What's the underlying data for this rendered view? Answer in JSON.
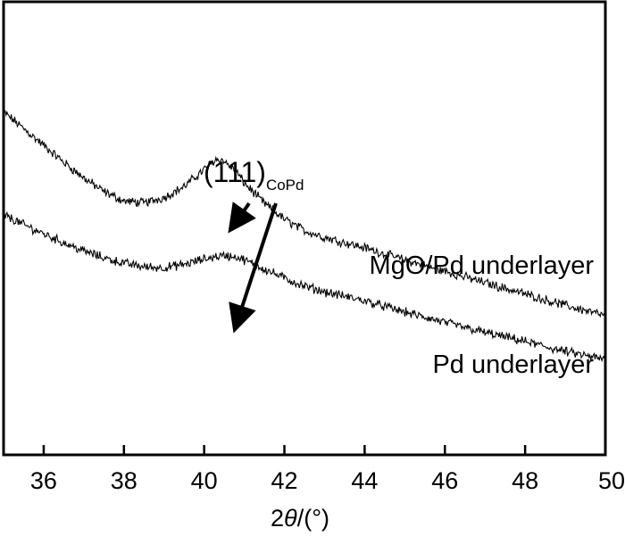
{
  "chart_data": {
    "type": "line",
    "title": "",
    "xlabel_pre": "2",
    "xlabel_theta": "θ",
    "xlabel_post": "/(°)",
    "ylabel": "",
    "xlim": [
      35,
      50
    ],
    "xticks": [
      "36",
      "38",
      "40",
      "42",
      "44",
      "46",
      "48",
      "50"
    ],
    "y_ticks_shown": false,
    "ylim": [
      0,
      1
    ],
    "series": [
      {
        "name": "MgO/Pd underlayer",
        "x": [
          35,
          35.5,
          36,
          36.5,
          37,
          37.5,
          38,
          38.5,
          39,
          39.5,
          40,
          40.3,
          40.5,
          40.8,
          41,
          41.5,
          42,
          42.5,
          43,
          44,
          45,
          46,
          47,
          48,
          49,
          50
        ],
        "y": [
          0.757,
          0.72,
          0.683,
          0.646,
          0.611,
          0.581,
          0.56,
          0.556,
          0.568,
          0.592,
          0.63,
          0.653,
          0.648,
          0.625,
          0.6,
          0.555,
          0.52,
          0.495,
          0.48,
          0.457,
          0.43,
          0.405,
          0.38,
          0.355,
          0.33,
          0.307
        ]
      },
      {
        "name": "Pd underlayer",
        "x": [
          35,
          35.5,
          36,
          36.5,
          37,
          37.5,
          38,
          38.5,
          39,
          39.5,
          40,
          40.3,
          40.5,
          40.8,
          41,
          41.5,
          42,
          42.5,
          43,
          44,
          45,
          46,
          47,
          48,
          49,
          50
        ],
        "y": [
          0.53,
          0.508,
          0.488,
          0.468,
          0.45,
          0.435,
          0.423,
          0.415,
          0.413,
          0.42,
          0.432,
          0.438,
          0.44,
          0.437,
          0.43,
          0.41,
          0.39,
          0.372,
          0.36,
          0.34,
          0.315,
          0.292,
          0.27,
          0.25,
          0.228,
          0.21
        ]
      }
    ],
    "annotation": {
      "text": "(111)",
      "subscript": "CoPd",
      "arrow_targets": [
        {
          "series": "MgO/Pd underlayer",
          "x": 40.5
        },
        {
          "series": "Pd underlayer",
          "x": 40.6
        }
      ]
    },
    "grid": false,
    "legend": "inline labels right of curves"
  }
}
